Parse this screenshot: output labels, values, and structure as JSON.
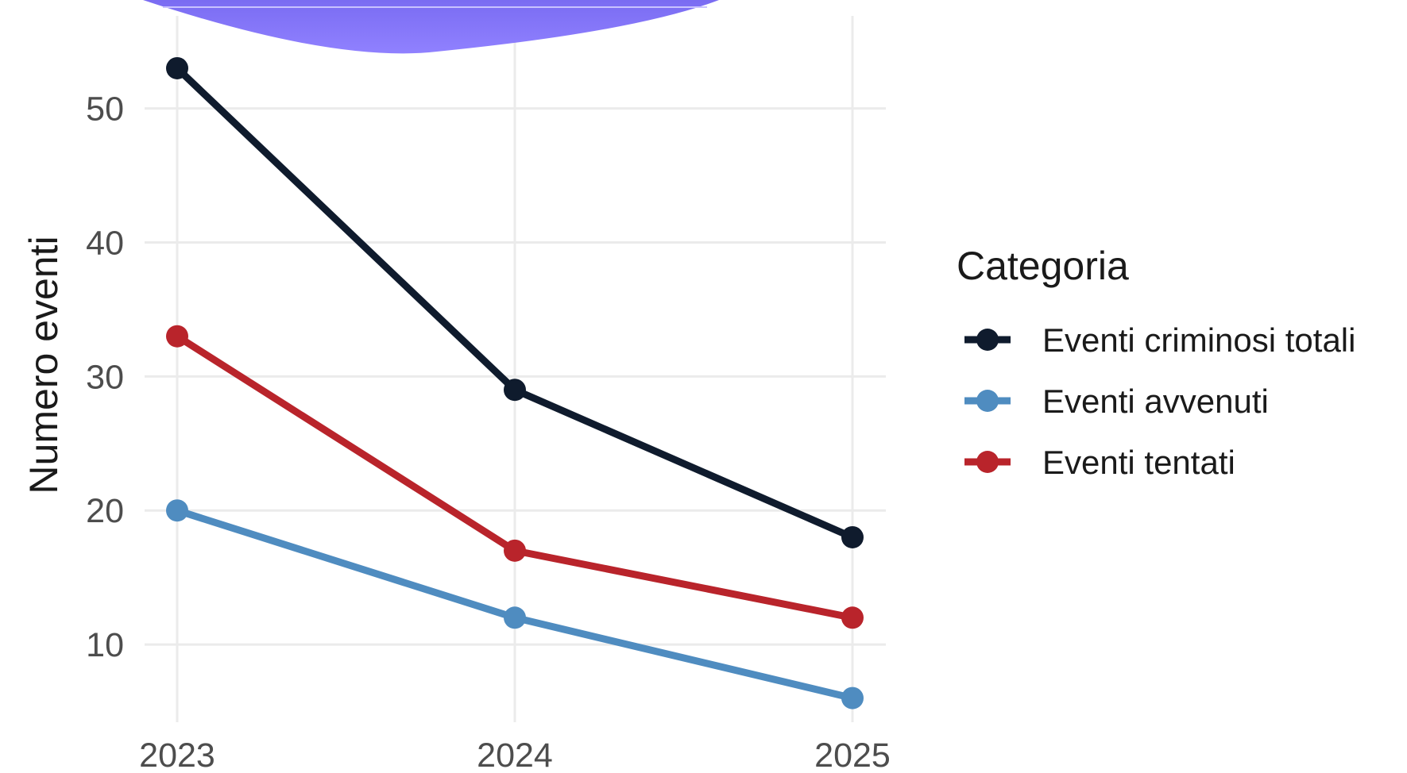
{
  "chart_data": {
    "type": "line",
    "title": "",
    "xlabel": "",
    "ylabel": "Numero eventi",
    "x": [
      2023,
      2024,
      2025
    ],
    "x_tick_labels": [
      "2023",
      "2024",
      "2025"
    ],
    "y_ticks": [
      10,
      20,
      30,
      40,
      50
    ],
    "ylim": [
      4.2,
      57.5
    ],
    "grid": true,
    "legend_title": "Categoria",
    "legend_position": "right",
    "series": [
      {
        "name": "Eventi criminosi totali",
        "values": [
          53,
          29,
          18
        ],
        "color": "#0f1b2d"
      },
      {
        "name": "Eventi avvenuti",
        "values": [
          20,
          12,
          6
        ],
        "color": "#4f8cc0"
      },
      {
        "name": "Eventi tentati",
        "values": [
          33,
          17,
          12
        ],
        "color": "#b9242b"
      }
    ]
  }
}
